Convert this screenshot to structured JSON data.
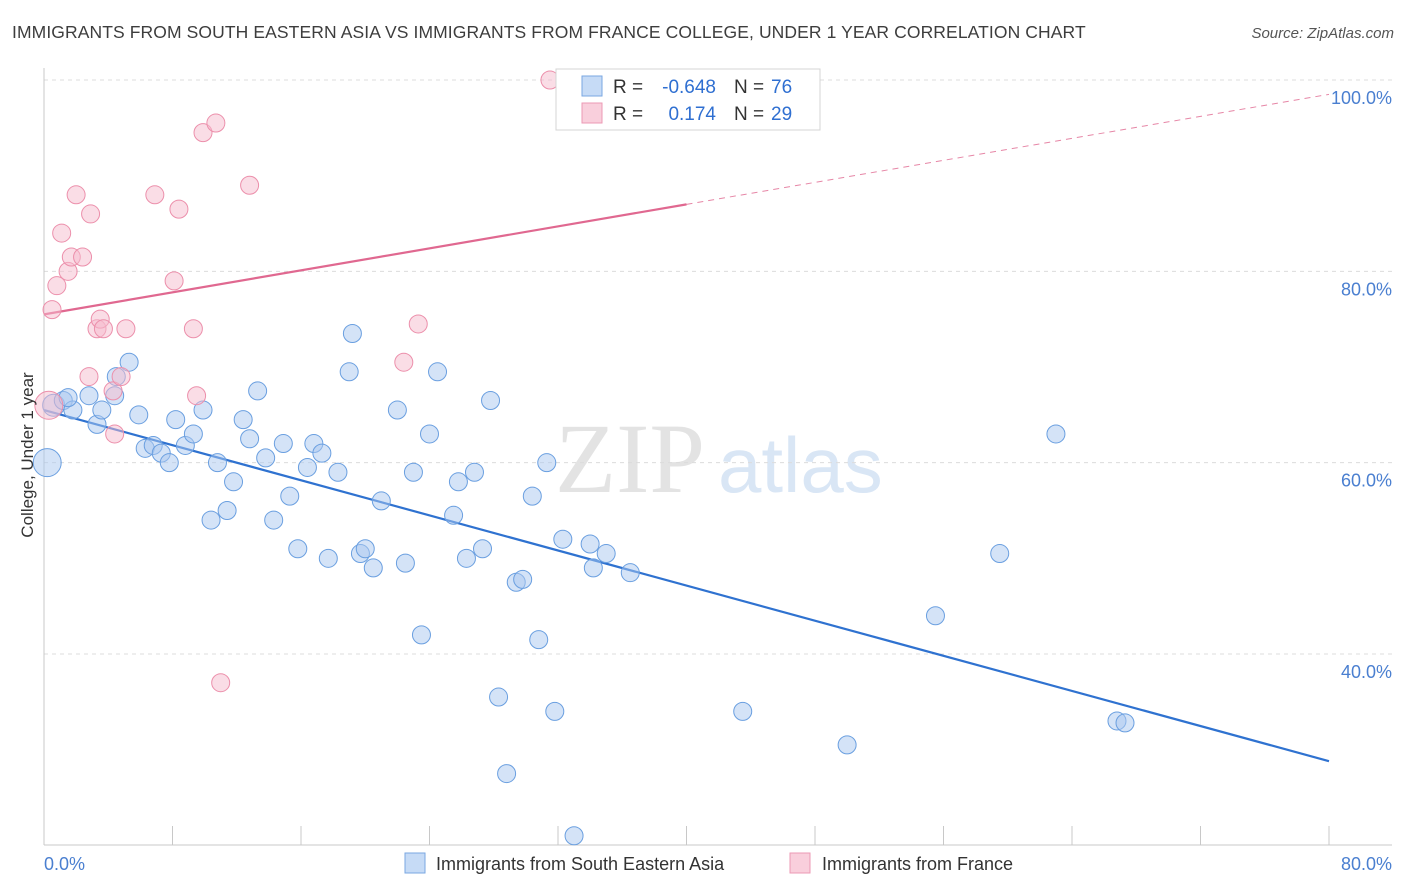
{
  "header": {
    "title": "IMMIGRANTS FROM SOUTH EASTERN ASIA VS IMMIGRANTS FROM FRANCE COLLEGE, UNDER 1 YEAR CORRELATION CHART",
    "source": "Source: ZipAtlas.com"
  },
  "watermark": {
    "zip": "ZIP",
    "atlas": "atlas"
  },
  "legend_box": {
    "rows": [
      {
        "r_label": "R =",
        "r_value": "-0.648",
        "n_label": "N =",
        "n_value": "76"
      },
      {
        "r_label": "R =",
        "r_value": "0.174",
        "n_label": "N =",
        "n_value": "29"
      }
    ]
  },
  "chart_data": {
    "type": "scatter",
    "ylabel": "College, Under 1 year",
    "xlim": [
      0,
      80
    ],
    "ylim": [
      20,
      104
    ],
    "x_tick_labels": {
      "min": "0.0%",
      "max": "80.0%"
    },
    "y_ticks": [
      {
        "value": 100,
        "label": "100.0%"
      },
      {
        "value": 80,
        "label": "80.0%"
      },
      {
        "value": 60,
        "label": "60.0%"
      },
      {
        "value": 40,
        "label": "40.0%"
      }
    ],
    "grid": "horizontal dashed",
    "legend": "bottom",
    "colors": {
      "blue_fill": "#aac8f0",
      "blue_stroke": "#6a9fe0",
      "blue_line": "#2f72d0",
      "pink_fill": "#f6bccd",
      "pink_stroke": "#ec8fab",
      "pink_line": "#e06890"
    },
    "series": [
      {
        "name": "Immigrants from South Eastern Asia",
        "color": "blue",
        "trend": {
          "x0": 0,
          "y0": 65.5,
          "x1": 80,
          "y1": 28.8,
          "dashed_from": null
        },
        "points": [
          [
            0.2,
            60.0,
            14
          ],
          [
            0.6,
            66.0,
            11
          ],
          [
            1.2,
            66.5,
            9
          ],
          [
            1.8,
            65.5,
            9
          ],
          [
            2.8,
            67.0,
            9
          ],
          [
            3.3,
            64.0,
            9
          ],
          [
            3.6,
            65.5,
            9
          ],
          [
            4.5,
            69.0,
            9
          ],
          [
            5.3,
            70.5,
            9
          ],
          [
            5.9,
            65.0,
            9
          ],
          [
            6.3,
            61.5,
            9
          ],
          [
            6.8,
            61.8,
            9
          ],
          [
            7.3,
            61.0,
            9
          ],
          [
            7.8,
            60.0,
            9
          ],
          [
            8.2,
            64.5,
            9
          ],
          [
            8.8,
            61.8,
            9
          ],
          [
            9.3,
            63.0,
            9
          ],
          [
            9.9,
            65.5,
            9
          ],
          [
            10.4,
            54.0,
            9
          ],
          [
            10.8,
            60.0,
            9
          ],
          [
            11.4,
            55.0,
            9
          ],
          [
            11.8,
            58.0,
            9
          ],
          [
            12.4,
            64.5,
            9
          ],
          [
            12.8,
            62.5,
            9
          ],
          [
            13.3,
            67.5,
            9
          ],
          [
            13.8,
            60.5,
            9
          ],
          [
            14.3,
            54.0,
            9
          ],
          [
            14.9,
            62.0,
            9
          ],
          [
            15.3,
            56.5,
            9
          ],
          [
            15.8,
            51.0,
            9
          ],
          [
            16.4,
            59.5,
            9
          ],
          [
            16.8,
            62.0,
            9
          ],
          [
            17.3,
            61.0,
            9
          ],
          [
            17.7,
            50.0,
            9
          ],
          [
            18.3,
            59.0,
            9
          ],
          [
            19.0,
            69.5,
            9
          ],
          [
            19.2,
            73.5,
            9
          ],
          [
            19.7,
            50.5,
            9
          ],
          [
            20.0,
            51.0,
            9
          ],
          [
            20.5,
            49.0,
            9
          ],
          [
            21.0,
            56.0,
            9
          ],
          [
            22.0,
            65.5,
            9
          ],
          [
            22.5,
            49.5,
            9
          ],
          [
            23.0,
            59.0,
            9
          ],
          [
            23.5,
            42.0,
            9
          ],
          [
            24.0,
            63.0,
            9
          ],
          [
            24.5,
            69.5,
            9
          ],
          [
            25.5,
            54.5,
            9
          ],
          [
            25.8,
            58.0,
            9
          ],
          [
            26.3,
            50.0,
            9
          ],
          [
            26.8,
            59.0,
            9
          ],
          [
            27.3,
            51.0,
            9
          ],
          [
            27.8,
            66.5,
            9
          ],
          [
            28.3,
            35.5,
            9
          ],
          [
            28.8,
            27.5,
            9
          ],
          [
            29.4,
            47.5,
            9
          ],
          [
            29.8,
            47.8,
            9
          ],
          [
            30.4,
            56.5,
            9
          ],
          [
            30.8,
            41.5,
            9
          ],
          [
            31.3,
            60.0,
            9
          ],
          [
            31.8,
            34.0,
            9
          ],
          [
            32.3,
            52.0,
            9
          ],
          [
            33.0,
            21.0,
            9
          ],
          [
            34.0,
            51.5,
            9
          ],
          [
            34.2,
            49.0,
            9
          ],
          [
            35.0,
            50.5,
            9
          ],
          [
            36.5,
            48.5,
            9
          ],
          [
            43.5,
            34.0,
            9
          ],
          [
            50.0,
            30.5,
            9
          ],
          [
            55.5,
            44.0,
            9
          ],
          [
            59.5,
            50.5,
            9
          ],
          [
            63.0,
            63.0,
            9
          ],
          [
            66.8,
            33.0,
            9
          ],
          [
            67.3,
            32.8,
            9
          ],
          [
            1.5,
            66.8,
            9
          ],
          [
            4.4,
            67.0,
            9
          ]
        ]
      },
      {
        "name": "Immigrants from France",
        "color": "pink",
        "trend": {
          "x0": 0,
          "y0": 75.5,
          "x1": 80,
          "y1": 98.5,
          "dashed_from": 40
        },
        "points": [
          [
            0.3,
            66.0,
            14
          ],
          [
            0.5,
            76.0,
            9
          ],
          [
            0.8,
            78.5,
            9
          ],
          [
            1.1,
            84.0,
            9
          ],
          [
            1.5,
            80.0,
            9
          ],
          [
            1.7,
            81.5,
            9
          ],
          [
            2.0,
            88.0,
            9
          ],
          [
            2.4,
            81.5,
            9
          ],
          [
            2.8,
            69.0,
            9
          ],
          [
            2.9,
            86.0,
            9
          ],
          [
            3.3,
            74.0,
            9
          ],
          [
            3.5,
            75.0,
            9
          ],
          [
            3.7,
            74.0,
            9
          ],
          [
            4.3,
            67.5,
            9
          ],
          [
            4.4,
            63.0,
            9
          ],
          [
            4.8,
            69.0,
            9
          ],
          [
            5.1,
            74.0,
            9
          ],
          [
            6.9,
            88.0,
            9
          ],
          [
            8.1,
            79.0,
            9
          ],
          [
            8.4,
            86.5,
            9
          ],
          [
            9.3,
            74.0,
            9
          ],
          [
            9.5,
            67.0,
            9
          ],
          [
            9.9,
            94.5,
            9
          ],
          [
            10.7,
            95.5,
            9
          ],
          [
            11.0,
            37.0,
            9
          ],
          [
            12.8,
            89.0,
            9
          ],
          [
            22.4,
            70.5,
            9
          ],
          [
            23.3,
            74.5,
            9
          ],
          [
            31.5,
            100.0,
            9
          ]
        ]
      }
    ]
  }
}
